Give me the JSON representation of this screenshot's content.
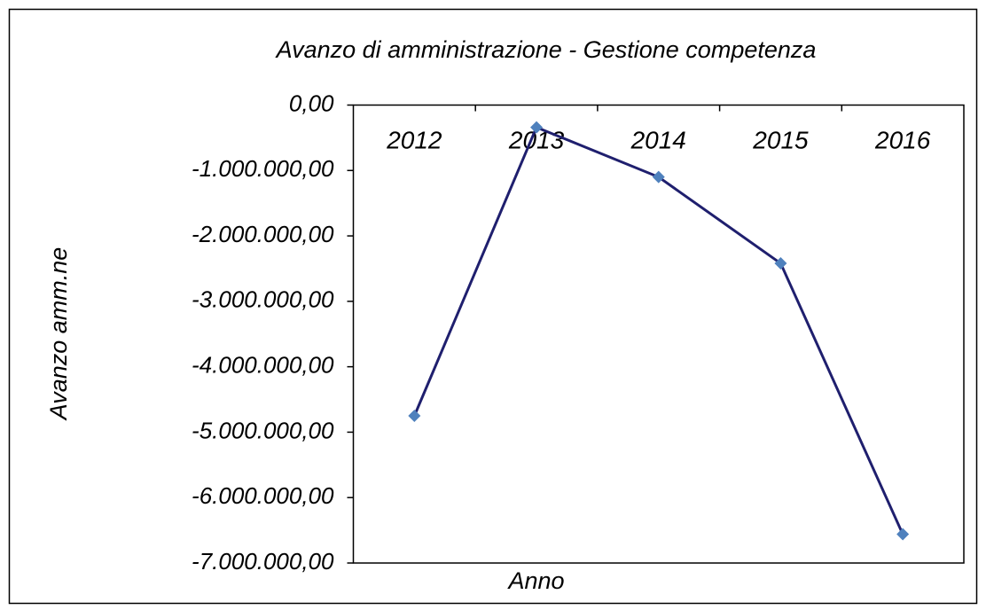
{
  "chart_data": {
    "type": "line",
    "title": "Avanzo di amministrazione - Gestione competenza",
    "x_label": "Anno",
    "y_label": "Avanzo amm.ne",
    "categories": [
      "2012",
      "2013",
      "2014",
      "2015",
      "2016"
    ],
    "series": [
      {
        "name": "Avanzo amm.ne",
        "color": "#1f1f6e",
        "marker_color": "#4f81bd",
        "values": [
          -4750000,
          -340000,
          -1100000,
          -2420000,
          -6560000
        ]
      }
    ],
    "ylim": [
      -7000000,
      0
    ],
    "yticks": [
      {
        "value": 0,
        "label": "0,00"
      },
      {
        "value": -1000000,
        "label": "-1.000.000,00"
      },
      {
        "value": -2000000,
        "label": "-2.000.000,00"
      },
      {
        "value": -3000000,
        "label": "-3.000.000,00"
      },
      {
        "value": -4000000,
        "label": "-4.000.000,00"
      },
      {
        "value": -5000000,
        "label": "-5.000.000,00"
      },
      {
        "value": -6000000,
        "label": "-6.000.000,00"
      },
      {
        "value": -7000000,
        "label": "-7.000.000,00"
      }
    ],
    "grid": false
  }
}
